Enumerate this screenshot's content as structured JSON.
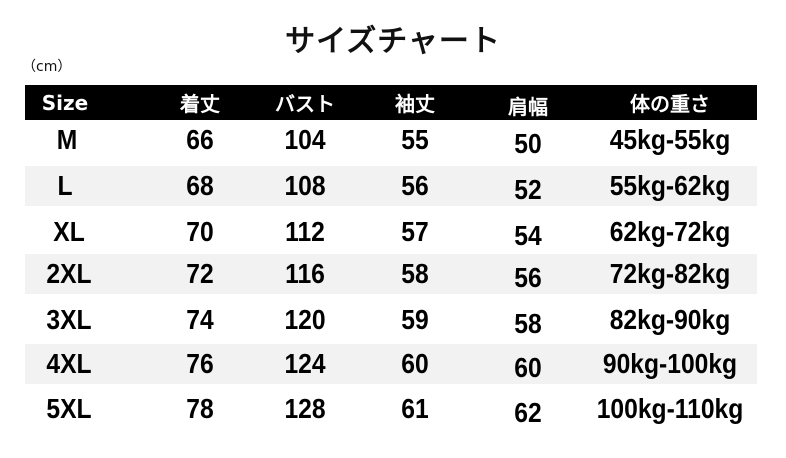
{
  "title": "サイズチャート",
  "unit": "（cm）",
  "headers": [
    "Size",
    "着丈",
    "バスト",
    "袖丈",
    "肩幅",
    "体の重さ"
  ],
  "rows": [
    [
      "M",
      "66",
      "104",
      "55",
      "50",
      "45kg-55kg"
    ],
    [
      "L",
      "68",
      "108",
      "56",
      "52",
      "55kg-62kg"
    ],
    [
      "XL",
      "70",
      "112",
      "57",
      "54",
      "62kg-72kg"
    ],
    [
      "2XL",
      "72",
      "116",
      "58",
      "56",
      "72kg-82kg"
    ],
    [
      "3XL",
      "74",
      "120",
      "59",
      "58",
      "82kg-90kg"
    ],
    [
      "4XL",
      "76",
      "124",
      "60",
      "60",
      "90kg-100kg"
    ],
    [
      "5XL",
      "78",
      "128",
      "61",
      "62",
      "100kg-110kg"
    ]
  ],
  "colors": {
    "header_bg": "#000000",
    "alt_row_bg": "#f2f2f2"
  }
}
